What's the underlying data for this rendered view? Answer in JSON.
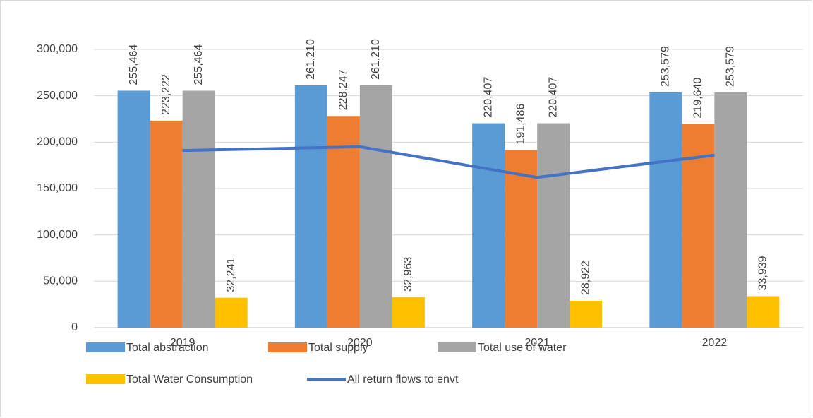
{
  "chart_data": {
    "type": "bar",
    "categories": [
      "2019",
      "2020",
      "2021",
      "2022"
    ],
    "series": [
      {
        "name": "Total abstraction",
        "color": "#5b9bd5",
        "values": [
          255464,
          261210,
          220407,
          253579
        ],
        "value_labels": [
          "255,464",
          "261,210",
          "220,407",
          "253,579"
        ]
      },
      {
        "name": "Total supply",
        "color": "#ed7d31",
        "values": [
          223222,
          228247,
          191486,
          219640
        ],
        "value_labels": [
          "223,222",
          "228,247",
          "191,486",
          "219,640"
        ]
      },
      {
        "name": "Total use of water",
        "color": "#a5a5a5",
        "values": [
          255464,
          261210,
          220407,
          253579
        ],
        "value_labels": [
          "255,464",
          "261,210",
          "220,407",
          "253,579"
        ]
      },
      {
        "name": "Total Water Consumption",
        "color": "#ffc000",
        "values": [
          32241,
          32963,
          28922,
          33939
        ],
        "value_labels": [
          "32,241",
          "32,963",
          "28,922",
          "33,939"
        ]
      },
      {
        "name": "All return flows to envt",
        "color": "#4472c4",
        "type": "line",
        "values": [
          191000,
          195000,
          162000,
          186000
        ]
      }
    ],
    "ylim": [
      0,
      300000
    ],
    "yticks": [
      0,
      {
        "value": 50000,
        "label": "50,000"
      },
      {
        "value": 100000,
        "label": "100,000"
      },
      {
        "value": 150000,
        "label": "150,000"
      },
      {
        "value": 200000,
        "label": "200,000"
      },
      {
        "value": 250000,
        "label": "250,000"
      },
      {
        "value": 300000,
        "label": "300,000"
      }
    ],
    "grid": true
  }
}
